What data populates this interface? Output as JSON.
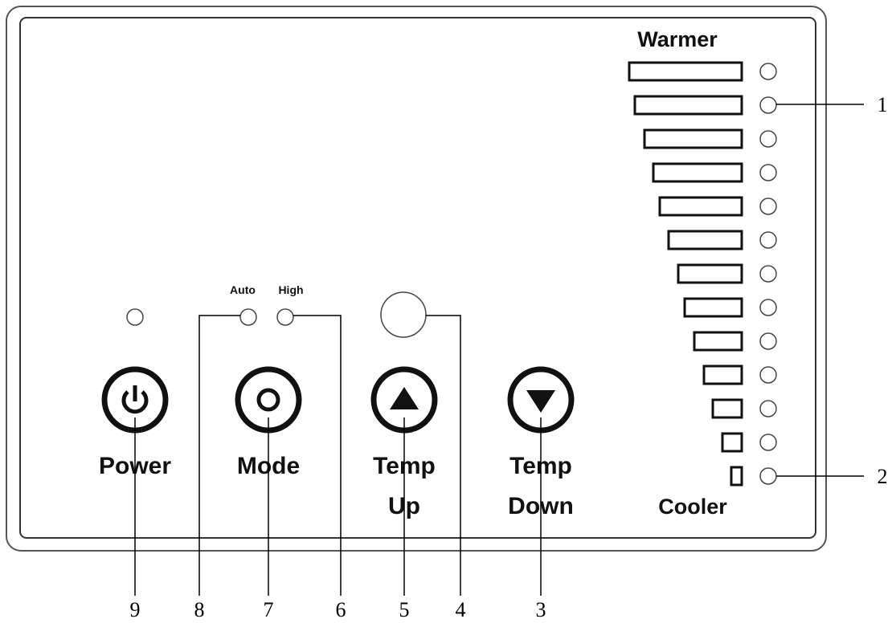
{
  "panel": {
    "scale": {
      "top_label": "Warmer",
      "bottom_label": "Cooler"
    },
    "indicators": {
      "auto": "Auto",
      "high": "High"
    },
    "buttons": [
      {
        "lines": [
          "Power"
        ]
      },
      {
        "lines": [
          "Mode"
        ]
      },
      {
        "lines": [
          "Temp",
          "Up"
        ]
      },
      {
        "lines": [
          "Temp",
          "Down"
        ]
      }
    ],
    "callouts": [
      "1",
      "2",
      "3",
      "4",
      "5",
      "6",
      "7",
      "8",
      "9"
    ]
  }
}
